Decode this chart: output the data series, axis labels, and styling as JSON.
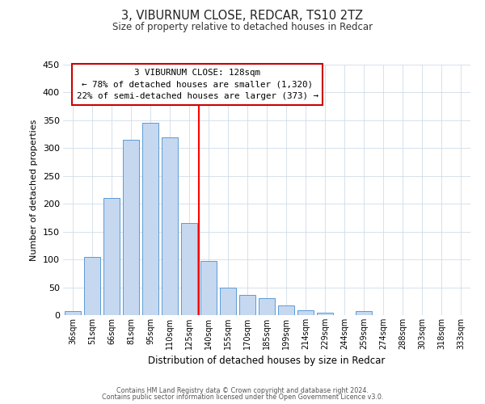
{
  "title": "3, VIBURNUM CLOSE, REDCAR, TS10 2TZ",
  "subtitle": "Size of property relative to detached houses in Redcar",
  "xlabel": "Distribution of detached houses by size in Redcar",
  "ylabel": "Number of detached properties",
  "bar_labels": [
    "36sqm",
    "51sqm",
    "66sqm",
    "81sqm",
    "95sqm",
    "110sqm",
    "125sqm",
    "140sqm",
    "155sqm",
    "170sqm",
    "185sqm",
    "199sqm",
    "214sqm",
    "229sqm",
    "244sqm",
    "259sqm",
    "274sqm",
    "288sqm",
    "303sqm",
    "318sqm",
    "333sqm"
  ],
  "bar_values": [
    7,
    105,
    210,
    315,
    345,
    320,
    165,
    97,
    50,
    37,
    30,
    18,
    9,
    5,
    0,
    7,
    0,
    0,
    0,
    0,
    0
  ],
  "bar_color": "#c5d8f0",
  "bar_edge_color": "#5b9bd5",
  "vline_color": "red",
  "ylim": [
    0,
    450
  ],
  "yticks": [
    0,
    50,
    100,
    150,
    200,
    250,
    300,
    350,
    400,
    450
  ],
  "annotation_title": "3 VIBURNUM CLOSE: 128sqm",
  "annotation_line1": "← 78% of detached houses are smaller (1,320)",
  "annotation_line2": "22% of semi-detached houses are larger (373) →",
  "annotation_box_color": "#ffffff",
  "annotation_box_edge": "#cc0000",
  "footer1": "Contains HM Land Registry data © Crown copyright and database right 2024.",
  "footer2": "Contains public sector information licensed under the Open Government Licence v3.0.",
  "background_color": "#ffffff",
  "grid_color": "#d0dce8"
}
